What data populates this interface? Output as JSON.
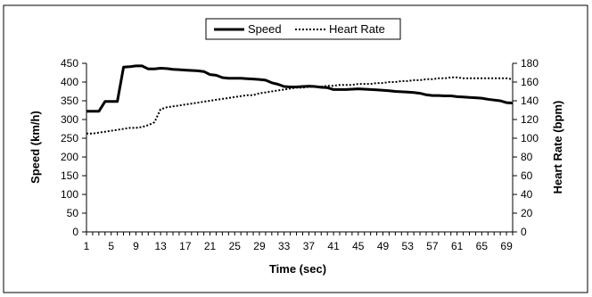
{
  "chart_data": {
    "type": "line",
    "title": "",
    "xlabel": "Time (sec)",
    "ylabel": "Speed (km/h)",
    "y2label": "Heart Rate (bpm)",
    "xlim": [
      1,
      70
    ],
    "ylim": [
      0,
      450
    ],
    "y2lim": [
      0,
      180
    ],
    "x_ticks": [
      1,
      5,
      9,
      13,
      17,
      21,
      25,
      29,
      33,
      37,
      41,
      45,
      49,
      53,
      57,
      61,
      65,
      69
    ],
    "y_ticks": [
      0,
      50,
      100,
      150,
      200,
      250,
      300,
      350,
      400,
      450
    ],
    "y2_ticks": [
      0,
      20,
      40,
      60,
      80,
      100,
      120,
      140,
      160,
      180
    ],
    "grid": false,
    "legend_position": "top-center",
    "x": [
      1,
      2,
      3,
      4,
      5,
      6,
      7,
      8,
      9,
      10,
      11,
      12,
      13,
      14,
      15,
      16,
      17,
      18,
      19,
      20,
      21,
      22,
      23,
      24,
      25,
      26,
      27,
      28,
      29,
      30,
      31,
      32,
      33,
      34,
      35,
      36,
      37,
      38,
      39,
      40,
      41,
      42,
      43,
      44,
      45,
      46,
      47,
      48,
      49,
      50,
      51,
      52,
      53,
      54,
      55,
      56,
      57,
      58,
      59,
      60,
      61,
      62,
      63,
      64,
      65,
      66,
      67,
      68,
      69,
      70
    ],
    "series": [
      {
        "name": "Speed",
        "axis": "left",
        "style": "solid",
        "color": "#000000",
        "values": [
          322,
          322,
          322,
          348,
          348,
          348,
          440,
          441,
          443,
          443,
          435,
          435,
          437,
          436,
          434,
          433,
          432,
          431,
          430,
          428,
          420,
          418,
          412,
          410,
          410,
          410,
          409,
          408,
          407,
          405,
          398,
          394,
          388,
          387,
          387,
          388,
          389,
          388,
          386,
          385,
          380,
          380,
          380,
          381,
          382,
          381,
          380,
          379,
          378,
          377,
          375,
          374,
          373,
          372,
          370,
          366,
          364,
          364,
          363,
          363,
          361,
          360,
          359,
          358,
          357,
          354,
          352,
          350,
          345,
          344
        ]
      },
      {
        "name": "Heart Rate",
        "axis": "right",
        "style": "dotted",
        "color": "#000000",
        "values": [
          105,
          105,
          106,
          107,
          108,
          109,
          110,
          111,
          111,
          112,
          114,
          117,
          131,
          133,
          134,
          135,
          136,
          137,
          138,
          139,
          140,
          141,
          142,
          143,
          144,
          145,
          146,
          146,
          148,
          149,
          150,
          151,
          152,
          153,
          154,
          154,
          155,
          155,
          155,
          156,
          156,
          157,
          157,
          157,
          158,
          158,
          158,
          159,
          159,
          160,
          160,
          161,
          161,
          162,
          162,
          163,
          163,
          164,
          164,
          165,
          165,
          164,
          164,
          164,
          164,
          164,
          164,
          164,
          164,
          163
        ]
      }
    ]
  }
}
